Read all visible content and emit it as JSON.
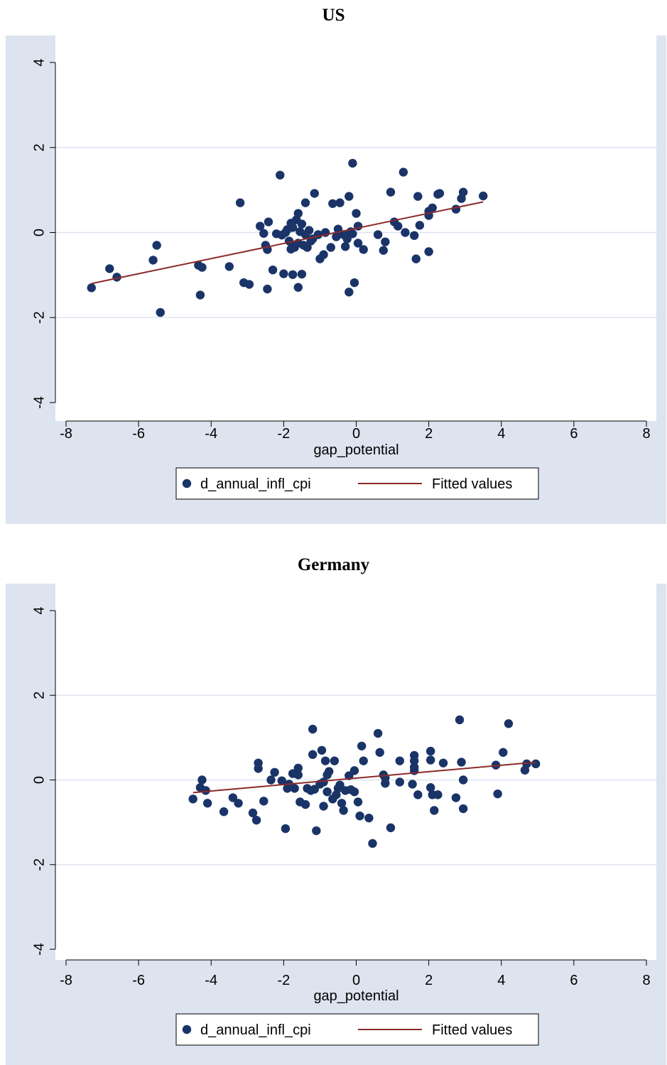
{
  "chart_data": [
    {
      "type": "scatter",
      "title": "US",
      "xlabel": "gap_potential",
      "ylabel": "",
      "xlim": [
        -8,
        8
      ],
      "ylim": [
        -4,
        4
      ],
      "xticks": [
        "-8",
        "-6",
        "-4",
        "-2",
        "0",
        "2",
        "4",
        "6",
        "8"
      ],
      "yticks": [
        "-4",
        "-2",
        "0",
        "2",
        "4"
      ],
      "grid": true,
      "legend_position": "bottom",
      "legend": [
        "d_annual_infl_cpi",
        "Fitted values"
      ],
      "colors": {
        "points": "#1a3468",
        "line": "#8b2a2a",
        "plot_bg": "#ffffff",
        "outer_bg": "#dde3ef",
        "grid": "#dde3ef"
      },
      "series": [
        {
          "name": "d_annual_infl_cpi",
          "kind": "scatter",
          "points": [
            [
              -7.3,
              -1.3
            ],
            [
              -6.8,
              -0.85
            ],
            [
              -6.6,
              -1.05
            ],
            [
              -5.6,
              -0.65
            ],
            [
              -5.5,
              -0.3
            ],
            [
              -5.4,
              -1.88
            ],
            [
              -4.35,
              -0.77
            ],
            [
              -4.3,
              -1.47
            ],
            [
              -4.25,
              -0.82
            ],
            [
              -3.5,
              -0.8
            ],
            [
              -3.2,
              0.7
            ],
            [
              -3.1,
              -1.18
            ],
            [
              -2.95,
              -1.22
            ],
            [
              -2.65,
              0.15
            ],
            [
              -2.55,
              -0.02
            ],
            [
              -2.5,
              -0.3
            ],
            [
              -2.45,
              -0.4
            ],
            [
              -2.45,
              -1.33
            ],
            [
              -2.42,
              0.25
            ],
            [
              -2.3,
              -0.88
            ],
            [
              -2.2,
              -0.03
            ],
            [
              -2.1,
              1.35
            ],
            [
              -2.05,
              -0.06
            ],
            [
              -2.0,
              -0.97
            ],
            [
              -1.95,
              0.0
            ],
            [
              -1.9,
              0.07
            ],
            [
              -1.85,
              -0.2
            ],
            [
              -1.8,
              0.22
            ],
            [
              -1.8,
              -0.39
            ],
            [
              -1.75,
              -0.99
            ],
            [
              -1.75,
              -0.3
            ],
            [
              -1.75,
              0.12
            ],
            [
              -1.7,
              -0.35
            ],
            [
              -1.65,
              0.3
            ],
            [
              -1.6,
              0.45
            ],
            [
              -1.6,
              -0.25
            ],
            [
              -1.6,
              -1.29
            ],
            [
              -1.55,
              0.02
            ],
            [
              -1.5,
              -0.98
            ],
            [
              -1.5,
              0.2
            ],
            [
              -1.45,
              -0.3
            ],
            [
              -1.4,
              -0.05
            ],
            [
              -1.4,
              0.7
            ],
            [
              -1.35,
              -0.35
            ],
            [
              -1.3,
              0.05
            ],
            [
              -1.25,
              -0.2
            ],
            [
              -1.2,
              -0.15
            ],
            [
              -1.15,
              0.92
            ],
            [
              -1.05,
              -0.05
            ],
            [
              -1.0,
              -0.62
            ],
            [
              -0.9,
              -0.52
            ],
            [
              -0.85,
              0.0
            ],
            [
              -0.7,
              -0.35
            ],
            [
              -0.65,
              0.68
            ],
            [
              -0.55,
              -0.1
            ],
            [
              -0.5,
              0.08
            ],
            [
              -0.45,
              0.7
            ],
            [
              -0.35,
              -0.05
            ],
            [
              -0.3,
              -0.33
            ],
            [
              -0.25,
              -0.15
            ],
            [
              -0.2,
              0.85
            ],
            [
              -0.2,
              -1.4
            ],
            [
              -0.15,
              0.02
            ],
            [
              -0.1,
              1.63
            ],
            [
              -0.1,
              -0.03
            ],
            [
              -0.05,
              -1.18
            ],
            [
              0.0,
              0.45
            ],
            [
              0.05,
              0.15
            ],
            [
              0.05,
              -0.25
            ],
            [
              0.2,
              -0.4
            ],
            [
              0.6,
              -0.05
            ],
            [
              0.75,
              -0.42
            ],
            [
              0.8,
              -0.22
            ],
            [
              0.95,
              0.95
            ],
            [
              1.05,
              0.25
            ],
            [
              1.15,
              0.15
            ],
            [
              1.3,
              1.42
            ],
            [
              1.35,
              0.0
            ],
            [
              1.6,
              -0.07
            ],
            [
              1.65,
              -0.62
            ],
            [
              1.7,
              0.85
            ],
            [
              1.75,
              0.17
            ],
            [
              2.0,
              -0.45
            ],
            [
              2.0,
              0.4
            ],
            [
              2.0,
              0.5
            ],
            [
              2.1,
              0.58
            ],
            [
              2.25,
              0.9
            ],
            [
              2.3,
              0.92
            ],
            [
              2.75,
              0.55
            ],
            [
              2.9,
              0.8
            ],
            [
              2.95,
              0.95
            ],
            [
              3.5,
              0.86
            ]
          ]
        },
        {
          "name": "Fitted values",
          "kind": "line",
          "points": [
            [
              -7.3,
              -1.2
            ],
            [
              3.5,
              0.72
            ]
          ]
        }
      ]
    },
    {
      "type": "scatter",
      "title": "Germany",
      "xlabel": "gap_potential",
      "ylabel": "",
      "xlim": [
        -8,
        8
      ],
      "ylim": [
        -4,
        4
      ],
      "xticks": [
        "-8",
        "-6",
        "-4",
        "-2",
        "0",
        "2",
        "4",
        "6",
        "8"
      ],
      "yticks": [
        "-4",
        "-2",
        "0",
        "2",
        "4"
      ],
      "grid": true,
      "legend_position": "bottom",
      "legend": [
        "d_annual_infl_cpi",
        "Fitted values"
      ],
      "colors": {
        "points": "#1a3468",
        "line": "#8b2a2a",
        "plot_bg": "#ffffff",
        "outer_bg": "#dde3ef",
        "grid": "#dde3ef"
      },
      "series": [
        {
          "name": "d_annual_infl_cpi",
          "kind": "scatter",
          "points": [
            [
              -4.5,
              -0.45
            ],
            [
              -4.3,
              -0.18
            ],
            [
              -4.25,
              0.0
            ],
            [
              -4.15,
              -0.25
            ],
            [
              -4.1,
              -0.55
            ],
            [
              -3.65,
              -0.75
            ],
            [
              -3.4,
              -0.42
            ],
            [
              -3.25,
              -0.55
            ],
            [
              -2.85,
              -0.78
            ],
            [
              -2.75,
              -0.95
            ],
            [
              -2.7,
              0.4
            ],
            [
              -2.7,
              0.27
            ],
            [
              -2.55,
              -0.5
            ],
            [
              -2.35,
              0.0
            ],
            [
              -2.25,
              0.18
            ],
            [
              -2.05,
              -0.02
            ],
            [
              -1.95,
              -1.15
            ],
            [
              -1.9,
              -0.2
            ],
            [
              -1.85,
              -0.1
            ],
            [
              -1.75,
              0.15
            ],
            [
              -1.7,
              -0.2
            ],
            [
              -1.6,
              0.28
            ],
            [
              -1.6,
              0.12
            ],
            [
              -1.55,
              -0.52
            ],
            [
              -1.4,
              -0.58
            ],
            [
              -1.35,
              -0.2
            ],
            [
              -1.25,
              -0.25
            ],
            [
              -1.2,
              0.6
            ],
            [
              -1.2,
              1.2
            ],
            [
              -1.15,
              -0.22
            ],
            [
              -1.1,
              -1.2
            ],
            [
              -1.0,
              -0.1
            ],
            [
              -0.95,
              0.7
            ],
            [
              -0.9,
              -0.62
            ],
            [
              -0.9,
              -0.05
            ],
            [
              -0.85,
              0.45
            ],
            [
              -0.8,
              0.12
            ],
            [
              -0.8,
              -0.28
            ],
            [
              -0.75,
              0.2
            ],
            [
              -0.65,
              -0.45
            ],
            [
              -0.6,
              0.45
            ],
            [
              -0.55,
              -0.35
            ],
            [
              -0.5,
              -0.2
            ],
            [
              -0.45,
              -0.12
            ],
            [
              -0.4,
              -0.55
            ],
            [
              -0.35,
              -0.72
            ],
            [
              -0.3,
              -0.25
            ],
            [
              -0.2,
              0.1
            ],
            [
              -0.15,
              -0.23
            ],
            [
              -0.05,
              0.22
            ],
            [
              -0.05,
              -0.28
            ],
            [
              0.05,
              -0.52
            ],
            [
              0.1,
              -0.85
            ],
            [
              0.15,
              0.8
            ],
            [
              0.2,
              0.45
            ],
            [
              0.35,
              -0.9
            ],
            [
              0.45,
              -1.5
            ],
            [
              0.6,
              1.1
            ],
            [
              0.65,
              0.65
            ],
            [
              0.75,
              0.12
            ],
            [
              0.8,
              -0.08
            ],
            [
              0.8,
              0.05
            ],
            [
              0.95,
              -1.13
            ],
            [
              1.2,
              0.45
            ],
            [
              1.2,
              -0.05
            ],
            [
              1.55,
              -0.1
            ],
            [
              1.6,
              0.58
            ],
            [
              1.6,
              0.45
            ],
            [
              1.6,
              0.3
            ],
            [
              1.6,
              0.22
            ],
            [
              1.7,
              -0.35
            ],
            [
              2.05,
              0.68
            ],
            [
              2.05,
              0.47
            ],
            [
              2.05,
              -0.18
            ],
            [
              2.1,
              -0.35
            ],
            [
              2.15,
              -0.72
            ],
            [
              2.25,
              -0.35
            ],
            [
              2.4,
              0.4
            ],
            [
              2.75,
              -0.42
            ],
            [
              2.85,
              1.42
            ],
            [
              2.9,
              0.42
            ],
            [
              2.95,
              0.0
            ],
            [
              2.95,
              -0.68
            ],
            [
              3.85,
              0.35
            ],
            [
              3.9,
              -0.33
            ],
            [
              4.05,
              0.65
            ],
            [
              4.2,
              1.33
            ],
            [
              4.65,
              0.23
            ],
            [
              4.7,
              0.38
            ],
            [
              4.95,
              0.38
            ]
          ]
        },
        {
          "name": "Fitted values",
          "kind": "line",
          "points": [
            [
              -4.5,
              -0.3
            ],
            [
              4.95,
              0.42
            ]
          ]
        }
      ]
    }
  ]
}
